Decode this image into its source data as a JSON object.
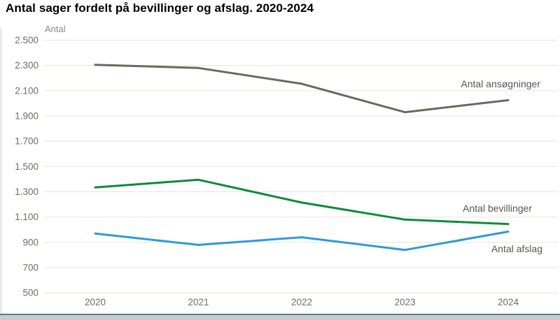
{
  "title": "Antal sager fordelt på bevillinger og afslag. 2020-2024",
  "axis_title": "Antal",
  "chart_data": {
    "type": "line",
    "x": [
      2020,
      2021,
      2022,
      2023,
      2024
    ],
    "x_labels": [
      "2020",
      "2021",
      "2022",
      "2023",
      "2024"
    ],
    "series": [
      {
        "name": "Antal ansøgninger",
        "color": "#6b695b",
        "values": [
          2305,
          2280,
          2155,
          1930,
          2025
        ]
      },
      {
        "name": "Antal bevillinger",
        "color": "#0d8a3c",
        "values": [
          1335,
          1395,
          1215,
          1080,
          1045
        ]
      },
      {
        "name": "Antal afslag",
        "color": "#2e9bd6",
        "values": [
          970,
          880,
          940,
          840,
          985
        ]
      }
    ],
    "ylabel": "Antal",
    "xlabel": "",
    "ylim": [
      500,
      2500
    ],
    "ytick_step": 200,
    "ytick_labels": [
      "2.500",
      "2.300",
      "2.100",
      "1.900",
      "1.700",
      "1.500",
      "1.300",
      "1.100",
      "900",
      "700",
      "500"
    ],
    "grid": true,
    "legend_position": "inline-right-of-lines"
  },
  "colors": {
    "gridline": "#e4e4dc",
    "tick_text": "#6e6e64",
    "axis_title_text": "#8b8b81",
    "series_label_text": "#57564c",
    "bottom_bar_fill": "#c3ced4",
    "bottom_bar_edge": "#5d7b87",
    "left_strip": "#eaeae6"
  }
}
